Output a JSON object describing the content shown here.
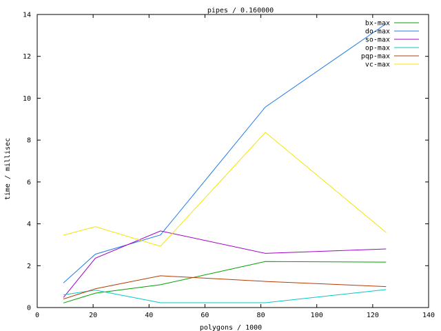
{
  "chart_data": {
    "type": "line",
    "title": "pipes / 0.160000",
    "xlabel": "polygons / 1000",
    "ylabel": "time / millisec",
    "xlim": [
      0,
      140
    ],
    "ylim": [
      0,
      14
    ],
    "xticks": [
      0,
      20,
      40,
      60,
      80,
      100,
      120,
      140
    ],
    "yticks": [
      0,
      2,
      4,
      6,
      8,
      10,
      12,
      14
    ],
    "grid": false,
    "legend_position": "top-right",
    "x": [
      9.4,
      20.8,
      44.1,
      81.6,
      124.8
    ],
    "series": [
      {
        "name": "bx-max",
        "color": "#00a000",
        "values": [
          0.22,
          0.69,
          1.09,
          2.2,
          2.17
        ]
      },
      {
        "name": "do-max",
        "color": "#1e78f0",
        "values": [
          1.18,
          2.55,
          3.47,
          9.58,
          13.56
        ]
      },
      {
        "name": "so-max",
        "color": "#a000c8",
        "values": [
          0.48,
          2.36,
          3.66,
          2.59,
          2.8
        ]
      },
      {
        "name": "op-max",
        "color": "#00c8c8",
        "values": [
          0.61,
          0.83,
          0.23,
          0.23,
          0.86
        ]
      },
      {
        "name": "pqp-max",
        "color": "#b43c00",
        "values": [
          0.41,
          0.9,
          1.52,
          1.25,
          1.0
        ]
      },
      {
        "name": "vc-max",
        "color": "#f0e600",
        "values": [
          3.46,
          3.86,
          2.93,
          8.37,
          3.59
        ]
      }
    ]
  }
}
